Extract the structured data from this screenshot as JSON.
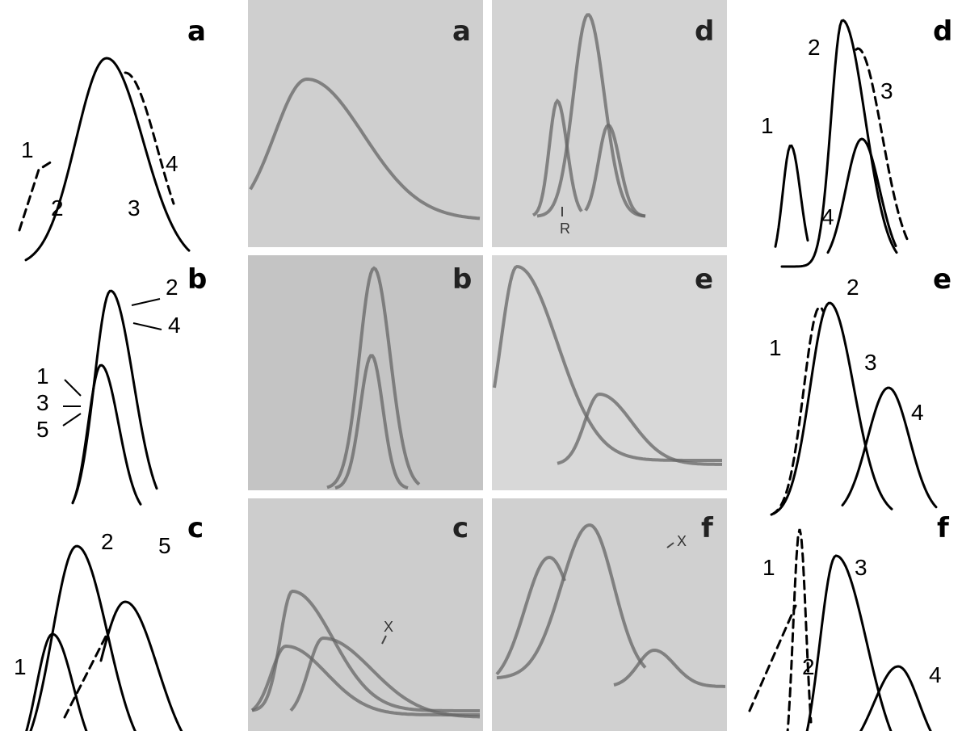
{
  "sketches": [
    {
      "letter": "a",
      "labels": [
        "1",
        "2",
        "3",
        "4"
      ]
    },
    {
      "letter": "b",
      "labels": [
        "2",
        "4",
        "1",
        "3",
        "5"
      ]
    },
    {
      "letter": "c",
      "labels": [
        "2",
        "1",
        "5"
      ]
    },
    {
      "letter": "d",
      "labels": [
        "2",
        "3",
        "1",
        "4"
      ]
    },
    {
      "letter": "e",
      "labels": [
        "2",
        "1",
        "3",
        "4"
      ]
    },
    {
      "letter": "f",
      "labels": [
        "1",
        "3",
        "2",
        "4"
      ]
    }
  ],
  "photos": [
    {
      "letter": "a"
    },
    {
      "letter": "b"
    },
    {
      "letter": "c",
      "annotation": "X"
    },
    {
      "letter": "d",
      "annotation": "R"
    },
    {
      "letter": "e"
    },
    {
      "letter": "f",
      "annotation": "X"
    }
  ]
}
